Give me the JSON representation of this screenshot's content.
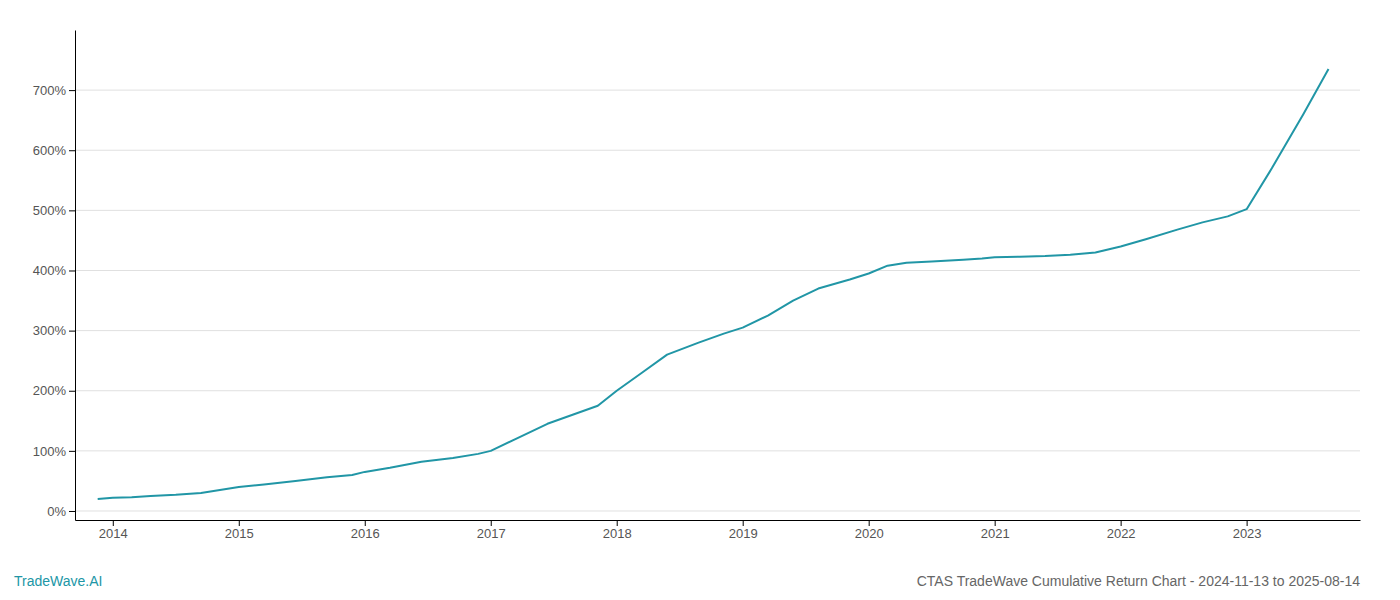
{
  "chart_data": {
    "type": "line",
    "title": "CTAS TradeWave Cumulative Return Chart - 2024-11-13 to 2025-08-14",
    "annotations": [
      "TradeWave.AI"
    ],
    "color": "#2196a6",
    "x": [
      2013.88,
      2014.0,
      2014.15,
      2014.3,
      2014.5,
      2014.7,
      2014.85,
      2015.0,
      2015.2,
      2015.45,
      2015.7,
      2015.9,
      2016.0,
      2016.2,
      2016.45,
      2016.7,
      2016.9,
      2017.0,
      2017.2,
      2017.45,
      2017.65,
      2017.85,
      2018.0,
      2018.2,
      2018.4,
      2018.65,
      2018.85,
      2019.0,
      2019.2,
      2019.4,
      2019.6,
      2019.85,
      2020.0,
      2020.15,
      2020.3,
      2020.5,
      2020.75,
      2020.9,
      2021.0,
      2021.2,
      2021.4,
      2021.6,
      2021.8,
      2022.0,
      2022.2,
      2022.45,
      2022.65,
      2022.85,
      2023.0,
      2023.2,
      2023.45,
      2023.65
    ],
    "values": [
      20,
      22,
      23,
      25,
      27,
      30,
      35,
      40,
      44,
      50,
      56,
      60,
      65,
      72,
      82,
      88,
      95,
      100,
      120,
      145,
      160,
      175,
      200,
      230,
      260,
      280,
      295,
      305,
      325,
      350,
      370,
      385,
      395,
      408,
      413,
      415,
      418,
      420,
      422,
      423,
      424,
      426,
      430,
      440,
      452,
      468,
      480,
      490,
      502,
      570,
      660,
      735
    ],
    "xlim": [
      2013.7,
      2023.9
    ],
    "xticks": [
      2014,
      2015,
      2016,
      2017,
      2018,
      2019,
      2020,
      2021,
      2022,
      2023
    ],
    "ylim": [
      -15,
      800
    ],
    "yticks": [
      {
        "value": 0,
        "label": "0%"
      },
      {
        "value": 100,
        "label": "100%"
      },
      {
        "value": 200,
        "label": "200%"
      },
      {
        "value": 300,
        "label": "300%"
      },
      {
        "value": 400,
        "label": "400%"
      },
      {
        "value": 500,
        "label": "500%"
      },
      {
        "value": 600,
        "label": "600%"
      },
      {
        "value": 700,
        "label": "700%"
      }
    ],
    "grid": true
  }
}
